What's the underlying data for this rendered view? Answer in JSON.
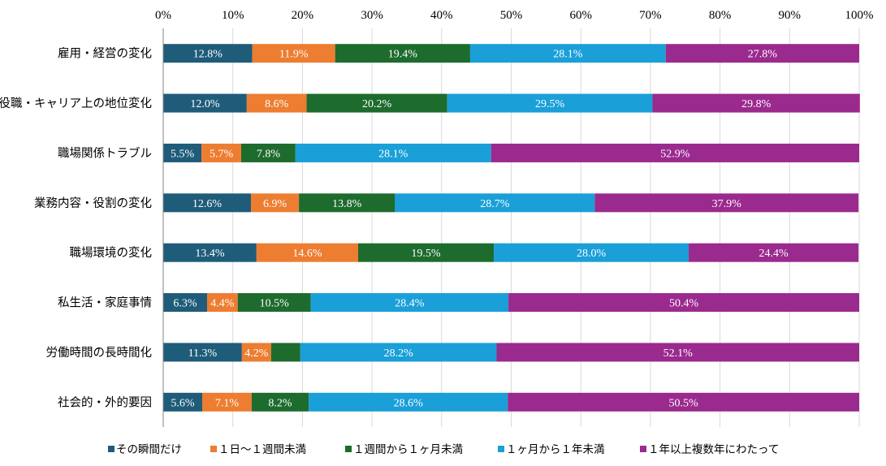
{
  "chart_data": {
    "type": "bar",
    "orientation": "horizontal",
    "stacked": "percent",
    "xlim": [
      0,
      100
    ],
    "x_ticks": [
      "0%",
      "10%",
      "20%",
      "30%",
      "40%",
      "50%",
      "60%",
      "70%",
      "80%",
      "90%",
      "100%"
    ],
    "categories": [
      "雇用・経営の変化",
      "役職・キャリア上の地位変化",
      "職場関係トラブル",
      "業務内容・役割の変化",
      "職場環境の変化",
      "私生活・家庭事情",
      "労働時間の長時間化",
      "社会的・外的要因"
    ],
    "series": [
      {
        "name": "その瞬間だけ",
        "color": "#1f5c7a",
        "values": [
          12.8,
          12.0,
          5.5,
          12.6,
          13.4,
          6.3,
          11.3,
          5.6
        ],
        "labels": [
          "12.8%",
          "12.0%",
          "5.5%",
          "12.6%",
          "13.4%",
          "6.3%",
          "11.3%",
          "5.6%"
        ]
      },
      {
        "name": "１日～１週間未満",
        "color": "#ed7d31",
        "values": [
          11.9,
          8.6,
          5.7,
          6.9,
          14.6,
          4.4,
          4.2,
          7.1
        ],
        "labels": [
          "11.9%",
          "8.6%",
          "5.7%",
          "6.9%",
          "14.6%",
          "4.4%",
          "4.2%",
          "7.1%"
        ]
      },
      {
        "name": "１週間から１ヶ月未満",
        "color": "#1e6b2e",
        "values": [
          19.4,
          20.2,
          7.8,
          13.8,
          19.5,
          10.5,
          4.2,
          8.2
        ],
        "labels": [
          "19.4%",
          "20.2%",
          "7.8%",
          "13.8%",
          "19.5%",
          "10.5%",
          "",
          "8.2%"
        ]
      },
      {
        "name": "１ヶ月から１年未満",
        "color": "#1a9fd8",
        "values": [
          28.1,
          29.5,
          28.1,
          28.7,
          28.0,
          28.4,
          28.2,
          28.6
        ],
        "labels": [
          "28.1%",
          "29.5%",
          "28.1%",
          "28.7%",
          "28.0%",
          "28.4%",
          "28.2%",
          "28.6%"
        ]
      },
      {
        "name": "１年以上複数年にわたって",
        "color": "#9b2a8e",
        "values": [
          27.8,
          29.8,
          52.9,
          37.9,
          24.4,
          50.4,
          52.1,
          50.5
        ],
        "labels": [
          "27.8%",
          "29.8%",
          "52.9%",
          "37.9%",
          "24.4%",
          "50.4%",
          "52.1%",
          "50.5%"
        ]
      }
    ],
    "legend": "bottom",
    "grid": true
  }
}
